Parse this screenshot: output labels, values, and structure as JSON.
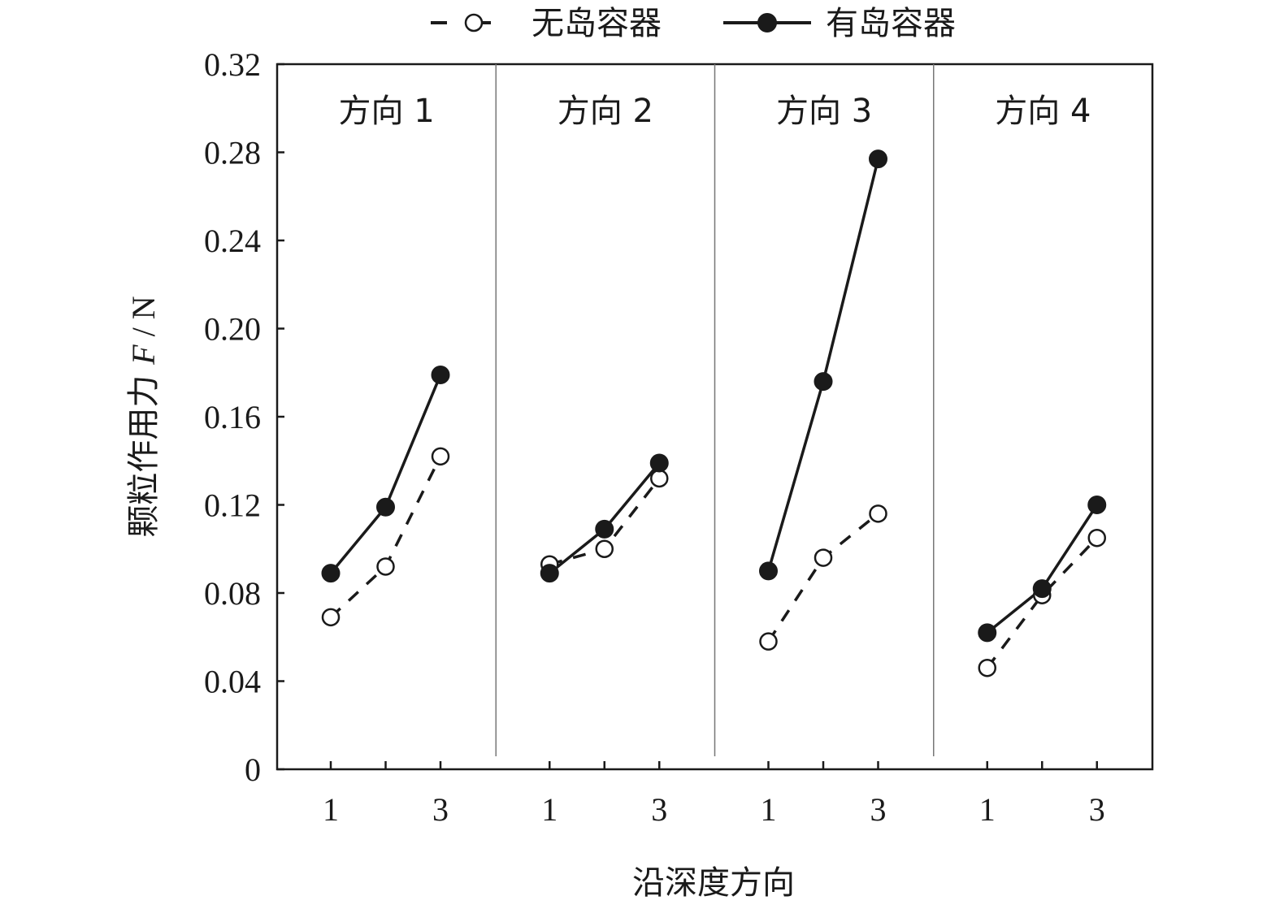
{
  "legend": {
    "s0": "无岛容器",
    "s1": "有岛容器"
  },
  "axes": {
    "ylabel_prefix": "颗粒作用力 ",
    "ylabel_var": "F",
    "ylabel_suffix": " / N",
    "xlabel": "沿深度方向"
  },
  "chart_data": {
    "type": "line",
    "ylabel": "颗粒作用力 F / N",
    "xlabel": "沿深度方向",
    "ylim": [
      0,
      0.32
    ],
    "yticks": [
      0,
      0.04,
      0.08,
      0.12,
      0.16,
      0.2,
      0.24,
      0.28,
      0.32
    ],
    "ytick_labels": [
      "0",
      "0.04",
      "0.08",
      "0.12",
      "0.16",
      "0.20",
      "0.24",
      "0.28",
      "0.32"
    ],
    "x": [
      1,
      2,
      3
    ],
    "xtick_labels": [
      "1",
      "",
      "3"
    ],
    "legend_position": "top",
    "grid": false,
    "series_styles": [
      {
        "line": "dashed",
        "marker": "open-circle",
        "color": "#1a1a1a"
      },
      {
        "line": "solid",
        "marker": "filled-circle",
        "color": "#1a1a1a"
      }
    ],
    "panels": [
      {
        "title": "方向 1",
        "series": [
          {
            "name": "无岛容器",
            "values": [
              0.069,
              0.092,
              0.142
            ]
          },
          {
            "name": "有岛容器",
            "values": [
              0.089,
              0.119,
              0.179
            ]
          }
        ]
      },
      {
        "title": "方向 2",
        "series": [
          {
            "name": "无岛容器",
            "values": [
              0.093,
              0.1,
              0.132
            ]
          },
          {
            "name": "有岛容器",
            "values": [
              0.089,
              0.109,
              0.139
            ]
          }
        ]
      },
      {
        "title": "方向 3",
        "series": [
          {
            "name": "无岛容器",
            "values": [
              0.058,
              0.096,
              0.116
            ]
          },
          {
            "name": "有岛容器",
            "values": [
              0.09,
              0.176,
              0.277
            ]
          }
        ]
      },
      {
        "title": "方向 4",
        "series": [
          {
            "name": "无岛容器",
            "values": [
              0.046,
              0.079,
              0.105
            ]
          },
          {
            "name": "有岛容器",
            "values": [
              0.062,
              0.082,
              0.12
            ]
          }
        ]
      }
    ]
  }
}
